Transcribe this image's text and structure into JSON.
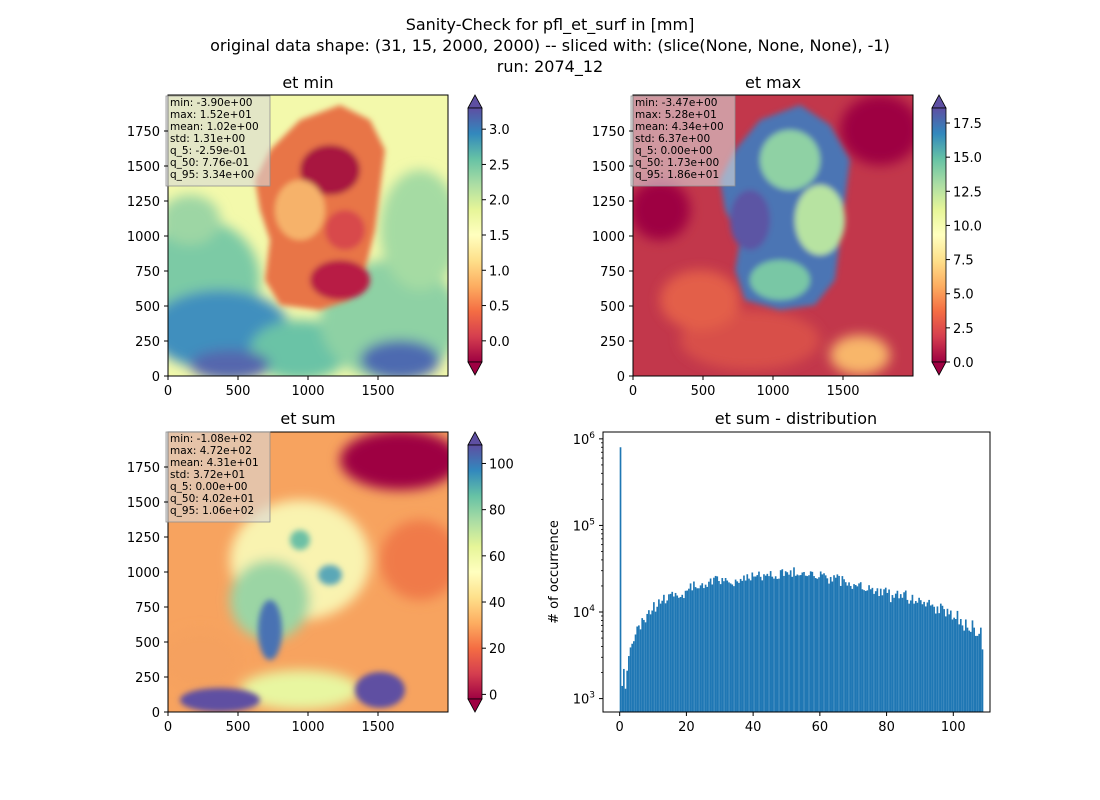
{
  "suptitle": {
    "line1": "Sanity-Check for pfl_et_surf in [mm]",
    "line2": "original data shape: (31, 15, 2000, 2000) -- sliced with: (slice(None, None, None), -1)",
    "line3": "run: 2074_12"
  },
  "colors": {
    "hist_bar": "#1f77b4",
    "spectral_low": "#9e0142",
    "spectral_mid": "#ffffbf",
    "spectral_high": "#5e4fa2",
    "stats_box": "#d9d9d9"
  },
  "panels": [
    {
      "id": "et-min",
      "title": "et min",
      "colormap": "Spectral",
      "color_range": [
        -0.3,
        3.3
      ],
      "map_data": "spatial field, not readable",
      "x_ticks": [
        "0",
        "500",
        "1000",
        "1500"
      ],
      "y_ticks": [
        "0",
        "250",
        "500",
        "750",
        "1000",
        "1250",
        "1500",
        "1750"
      ],
      "colorbar_ticks": [
        "0.0",
        "0.5",
        "1.0",
        "1.5",
        "2.0",
        "2.5",
        "3.0"
      ],
      "colorbar_tick_values": [
        0,
        0.5,
        1,
        1.5,
        2,
        2.5,
        3
      ],
      "stats": [
        "min: -3.90e+00",
        "max: 1.52e+01",
        "mean: 1.02e+00",
        "std: 1.31e+00",
        "q_5: -2.59e-01",
        "q_50: 7.76e-01",
        "q_95: 3.34e+00"
      ]
    },
    {
      "id": "et-max",
      "title": "et max",
      "colormap": "Spectral",
      "color_range": [
        0,
        18.6
      ],
      "map_data": "spatial field, not readable",
      "x_ticks": [
        "0",
        "500",
        "1000",
        "1500"
      ],
      "y_ticks": [
        "0",
        "250",
        "500",
        "750",
        "1000",
        "1250",
        "1500",
        "1750"
      ],
      "colorbar_ticks": [
        "0.0",
        "2.5",
        "5.0",
        "7.5",
        "10.0",
        "12.5",
        "15.0",
        "17.5"
      ],
      "colorbar_tick_values": [
        0,
        2.5,
        5,
        7.5,
        10,
        12.5,
        15,
        17.5
      ],
      "stats": [
        "min: -3.47e+00",
        "max: 5.28e+01",
        "mean: 4.34e+00",
        "std: 6.37e+00",
        "q_5: 0.00e+00",
        "q_50: 1.73e+00",
        "q_95: 1.86e+01"
      ]
    },
    {
      "id": "et-sum",
      "title": "et sum",
      "colormap": "Spectral",
      "color_range": [
        -2,
        108
      ],
      "map_data": "spatial field, not readable",
      "x_ticks": [
        "0",
        "500",
        "1000",
        "1500"
      ],
      "y_ticks": [
        "0",
        "250",
        "500",
        "750",
        "1000",
        "1250",
        "1500",
        "1750"
      ],
      "colorbar_ticks": [
        "0",
        "20",
        "40",
        "60",
        "80",
        "100"
      ],
      "colorbar_tick_values": [
        0,
        20,
        40,
        60,
        80,
        100
      ],
      "stats": [
        "min: -1.08e+02",
        "max: 4.72e+02",
        "mean: 4.31e+01",
        "std: 3.72e+01",
        "q_5: 0.00e+00",
        "q_50: 4.02e+01",
        "q_95: 1.06e+02"
      ]
    }
  ],
  "chart_data": [
    {
      "type": "heatmap",
      "title": "et min",
      "xlim": [
        0,
        2000
      ],
      "ylim": [
        0,
        2000
      ],
      "colorbar_range": [
        -0.3,
        3.3
      ],
      "colorbar_extend": "both",
      "xticks": [
        0,
        500,
        1000,
        1500
      ],
      "yticks": [
        0,
        250,
        500,
        750,
        1000,
        1250,
        1500,
        1750
      ]
    },
    {
      "type": "heatmap",
      "title": "et max",
      "xlim": [
        0,
        2000
      ],
      "ylim": [
        0,
        2000
      ],
      "colorbar_range": [
        0,
        18.6
      ],
      "colorbar_extend": "both",
      "xticks": [
        0,
        500,
        1000,
        1500
      ],
      "yticks": [
        0,
        250,
        500,
        750,
        1000,
        1250,
        1500,
        1750
      ]
    },
    {
      "type": "heatmap",
      "title": "et sum",
      "xlim": [
        0,
        2000
      ],
      "ylim": [
        0,
        2000
      ],
      "colorbar_range": [
        -2,
        108
      ],
      "colorbar_extend": "both",
      "xticks": [
        0,
        500,
        1000,
        1500
      ],
      "yticks": [
        0,
        250,
        500,
        750,
        1000,
        1250,
        1500,
        1750
      ]
    },
    {
      "type": "bar",
      "title": "et sum - distribution",
      "xlabel": "",
      "ylabel": "# of occurrence",
      "yscale": "log",
      "xlim": [
        -5,
        111
      ],
      "ylim": [
        700,
        1200000
      ],
      "xticks": [
        "0",
        "20",
        "40",
        "60",
        "80",
        "100"
      ],
      "xtick_values": [
        0,
        20,
        40,
        60,
        80,
        100
      ],
      "yticks": [
        {
          "value": 1000,
          "base": "10",
          "exp": "3"
        },
        {
          "value": 10000,
          "base": "10",
          "exp": "4"
        },
        {
          "value": 100000,
          "base": "10",
          "exp": "5"
        },
        {
          "value": 1000000,
          "base": "10",
          "exp": "6"
        }
      ],
      "bin_width": 0.5,
      "bin_start": 0,
      "values": [
        800000,
        1400,
        2200,
        1300,
        2100,
        3100,
        3900,
        4300,
        4600,
        5500,
        6800,
        7000,
        6300,
        8500,
        8100,
        7600,
        9500,
        10500,
        9400,
        10400,
        13000,
        10100,
        11500,
        14000,
        12500,
        13500,
        15800,
        12600,
        13600,
        16000,
        16200,
        17100,
        15100,
        16600,
        15500,
        14600,
        14900,
        15800,
        14500,
        17600,
        17700,
        18600,
        21400,
        17800,
        22500,
        19400,
        18800,
        18800,
        20300,
        21500,
        18900,
        20700,
        19500,
        22400,
        24400,
        20800,
        24900,
        26100,
        25800,
        22800,
        21000,
        24700,
        22700,
        24700,
        23100,
        22000,
        21400,
        20800,
        19900,
        23700,
        22600,
        21700,
        24100,
        22900,
        26400,
        23100,
        27300,
        24300,
        23200,
        28600,
        25700,
        25700,
        26700,
        29300,
        25500,
        23200,
        27300,
        26300,
        27600,
        26000,
        29700,
        25600,
        24300,
        25900,
        24100,
        24300,
        30400,
        31200,
        26100,
        29600,
        28800,
        27000,
        30300,
        25500,
        32800,
        26200,
        27100,
        26500,
        26700,
        28600,
        29000,
        26300,
        26000,
        26600,
        29500,
        29100,
        26000,
        24700,
        24200,
        25200,
        29400,
        27200,
        28000,
        26500,
        24500,
        21300,
        25400,
        22500,
        26600,
        24900,
        27200,
        26100,
        20000,
        26000,
        23900,
        22100,
        20200,
        22000,
        20000,
        18500,
        21000,
        20500,
        19800,
        21400,
        22100,
        18300,
        17900,
        17500,
        17800,
        20400,
        18300,
        19000,
        16200,
        17400,
        18800,
        15300,
        18600,
        15600,
        18300,
        19100,
        16600,
        18200,
        13000,
        15700,
        14600,
        16300,
        17600,
        14400,
        16100,
        14600,
        16900,
        17700,
        13800,
        12500,
        13600,
        15800,
        12500,
        13400,
        12800,
        14600,
        13700,
        12300,
        13100,
        11600,
        12900,
        13800,
        11900,
        12200,
        11500,
        9600,
        11600,
        9700,
        12500,
        11800,
        10800,
        8900,
        10900,
        9400,
        10400,
        8200,
        8600,
        8300,
        10300,
        7200,
        8300,
        7000,
        6100,
        8200,
        6600,
        6100,
        5900,
        8000,
        6600,
        5300,
        5300,
        5600,
        6600,
        3700
      ]
    }
  ]
}
